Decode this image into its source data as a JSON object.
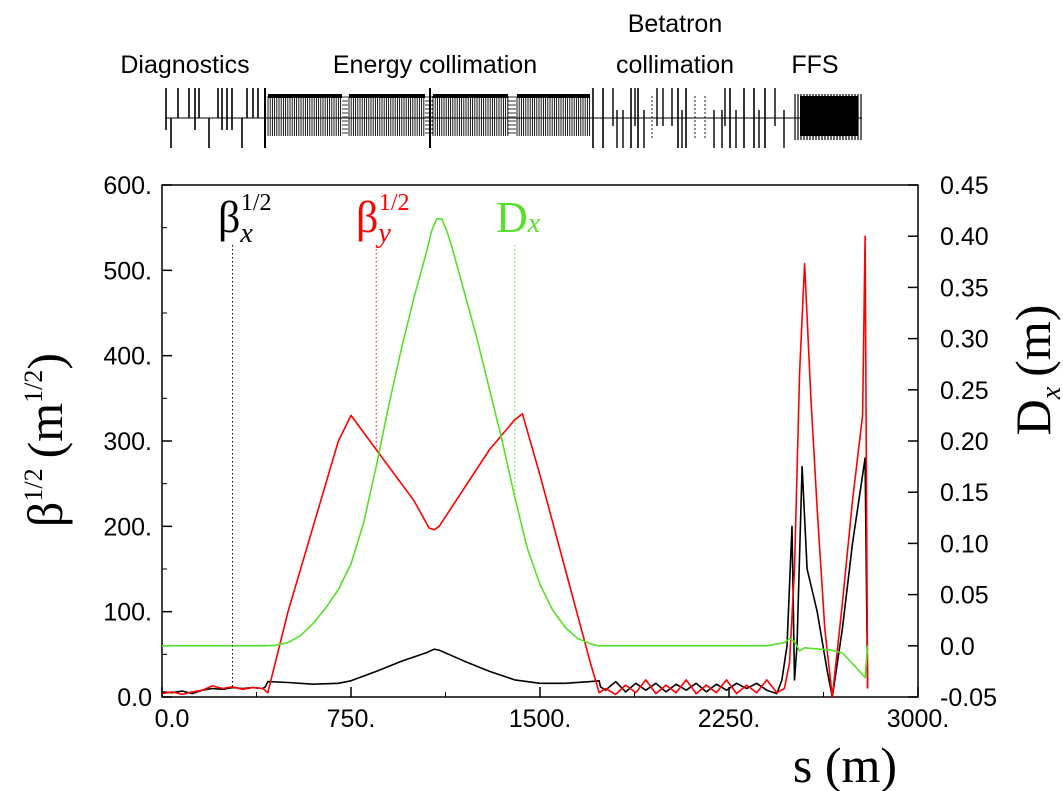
{
  "sections": [
    {
      "label": "Diagnostics"
    },
    {
      "label": "Energy collimation"
    },
    {
      "label": "Betatron",
      "label2": "collimation"
    },
    {
      "label": "FFS"
    }
  ],
  "chart_data": {
    "type": "line",
    "xlabel": "s (m)",
    "ylabel": {
      "base": "β",
      "sup": "1/2",
      "units": "(m",
      "units_sup": "1/2",
      "close": ")"
    },
    "y2label": {
      "base": "D",
      "sub": "x",
      "units": "(m)"
    },
    "xlim": [
      0,
      3000
    ],
    "ylim": [
      0,
      600
    ],
    "y2lim": [
      -0.05,
      0.45
    ],
    "xticks": [
      "0.0",
      "750.",
      "1500.",
      "2250.",
      "3000."
    ],
    "xtick_values": [
      0,
      750,
      1500,
      2250,
      3000
    ],
    "yticks": [
      "0.0",
      "100.",
      "200.",
      "300.",
      "400.",
      "500.",
      "600."
    ],
    "ytick_values": [
      0,
      100,
      200,
      300,
      400,
      500,
      600
    ],
    "y2ticks": [
      "-0.05",
      "0.0",
      "0.05",
      "0.10",
      "0.15",
      "0.20",
      "0.25",
      "0.30",
      "0.35",
      "0.40",
      "0.45"
    ],
    "y2tick_values": [
      -0.05,
      0,
      0.05,
      0.1,
      0.15,
      0.2,
      0.25,
      0.3,
      0.35,
      0.4,
      0.45
    ],
    "grid": false,
    "series": [
      {
        "name": "βx1/2",
        "label_base": "β",
        "label_sub": "x",
        "label_sup": "1/2",
        "color": "#000000",
        "axis": "left",
        "label_ref_s": 280,
        "x": [
          0,
          40,
          80,
          120,
          160,
          200,
          240,
          280,
          320,
          360,
          400,
          410,
          420,
          500,
          600,
          700,
          750,
          850,
          950,
          1050,
          1080,
          1100,
          1200,
          1300,
          1400,
          1500,
          1600,
          1700,
          1735,
          1740,
          1760,
          1800,
          1840,
          1880,
          1920,
          1960,
          2000,
          2040,
          2080,
          2120,
          2160,
          2200,
          2240,
          2280,
          2320,
          2360,
          2400,
          2440,
          2460,
          2480,
          2500,
          2510,
          2520,
          2540,
          2560,
          2600,
          2640,
          2660,
          2700,
          2740,
          2790,
          2800
        ],
        "y": [
          6,
          5,
          7,
          4,
          8,
          10,
          9,
          11,
          10,
          11,
          10,
          12,
          18,
          17,
          15,
          16,
          19,
          30,
          42,
          52,
          56,
          55,
          42,
          30,
          20,
          16,
          16,
          18,
          19,
          12,
          8,
          18,
          6,
          16,
          8,
          16,
          6,
          15,
          8,
          16,
          6,
          15,
          8,
          16,
          10,
          16,
          8,
          4,
          20,
          60,
          200,
          20,
          60,
          270,
          150,
          100,
          30,
          0,
          80,
          180,
          280,
          10
        ]
      },
      {
        "name": "βy1/2",
        "label_base": "β",
        "label_sub": "y",
        "label_sup": "1/2",
        "color": "#ff0000",
        "axis": "left",
        "label_ref_s": 850,
        "x": [
          0,
          40,
          80,
          120,
          160,
          200,
          240,
          280,
          320,
          360,
          400,
          420,
          500,
          600,
          700,
          750,
          800,
          900,
          1000,
          1060,
          1080,
          1100,
          1200,
          1300,
          1400,
          1430,
          1500,
          1600,
          1700,
          1735,
          1760,
          1800,
          1840,
          1880,
          1920,
          1960,
          2000,
          2040,
          2080,
          2120,
          2160,
          2200,
          2240,
          2280,
          2320,
          2360,
          2400,
          2440,
          2470,
          2490,
          2510,
          2530,
          2550,
          2575,
          2600,
          2630,
          2660,
          2700,
          2740,
          2780,
          2790,
          2800
        ],
        "y": [
          4,
          6,
          3,
          6,
          8,
          13,
          10,
          12,
          9,
          11,
          10,
          5,
          100,
          200,
          300,
          330,
          310,
          270,
          230,
          198,
          196,
          200,
          245,
          290,
          325,
          332,
          260,
          150,
          40,
          5,
          10,
          3,
          14,
          5,
          20,
          4,
          14,
          5,
          20,
          4,
          14,
          5,
          20,
          4,
          14,
          5,
          20,
          5,
          10,
          40,
          150,
          380,
          508,
          350,
          220,
          80,
          0,
          110,
          230,
          330,
          540,
          10
        ]
      },
      {
        "name": "Dx",
        "label_base": "D",
        "label_sub": "x",
        "color": "#55e02a",
        "axis": "right",
        "label_ref_s": 1400,
        "x": [
          0,
          200,
          400,
          450,
          500,
          550,
          600,
          650,
          700,
          750,
          800,
          850,
          900,
          950,
          1000,
          1050,
          1070,
          1090,
          1110,
          1130,
          1150,
          1200,
          1250,
          1300,
          1350,
          1400,
          1450,
          1500,
          1550,
          1600,
          1650,
          1700,
          1730,
          1800,
          2000,
          2200,
          2400,
          2470,
          2490,
          2510,
          2530,
          2550,
          2600,
          2650,
          2700,
          2750,
          2790,
          2800
        ],
        "y": [
          0,
          0,
          0,
          0.0005,
          0.003,
          0.01,
          0.022,
          0.037,
          0.055,
          0.08,
          0.12,
          0.175,
          0.235,
          0.29,
          0.34,
          0.385,
          0.405,
          0.417,
          0.417,
          0.405,
          0.39,
          0.345,
          0.3,
          0.25,
          0.2,
          0.145,
          0.095,
          0.06,
          0.035,
          0.018,
          0.007,
          0.002,
          0,
          0,
          0,
          0,
          0,
          0.003,
          0.007,
          0.004,
          -0.005,
          -0.002,
          -0.003,
          -0.004,
          -0.007,
          -0.02,
          -0.031,
          0
        ]
      }
    ]
  }
}
